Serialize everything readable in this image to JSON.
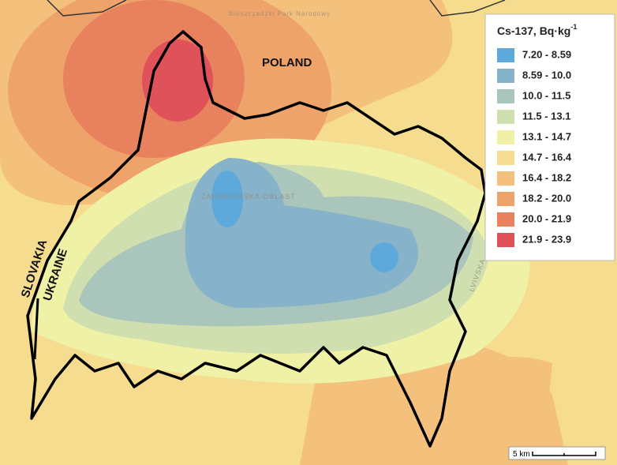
{
  "legend": {
    "title": "Cs-137, Bq·kg",
    "title_sup": "-1",
    "items": [
      {
        "label": "7.20 - 8.59",
        "color": "#5ea9dc"
      },
      {
        "label": "8.59 - 10.0",
        "color": "#86b3c9"
      },
      {
        "label": "10.0 - 11.5",
        "color": "#aac5bb"
      },
      {
        "label": "11.5 - 13.1",
        "color": "#cfdfb0"
      },
      {
        "label": "13.1 - 14.7",
        "color": "#eef1a6"
      },
      {
        "label": "14.7 - 16.4",
        "color": "#f6dc8e"
      },
      {
        "label": "16.4 - 18.2",
        "color": "#f3c17c"
      },
      {
        "label": "18.2 - 20.0",
        "color": "#eea36a"
      },
      {
        "label": "20.0 - 21.9",
        "color": "#e8825e"
      },
      {
        "label": "21.9 - 23.9",
        "color": "#e0525a"
      }
    ]
  },
  "labels": {
    "poland": "POLAND",
    "slovakia": "SLOVAKIA",
    "ukraine": "UKRAINE"
  },
  "map_labels": [
    "ZAKARPATSKA OBLAST",
    "LVIVSKA",
    "Bieszczadzki Park Narodowy"
  ],
  "scale_bar": "5 km"
}
